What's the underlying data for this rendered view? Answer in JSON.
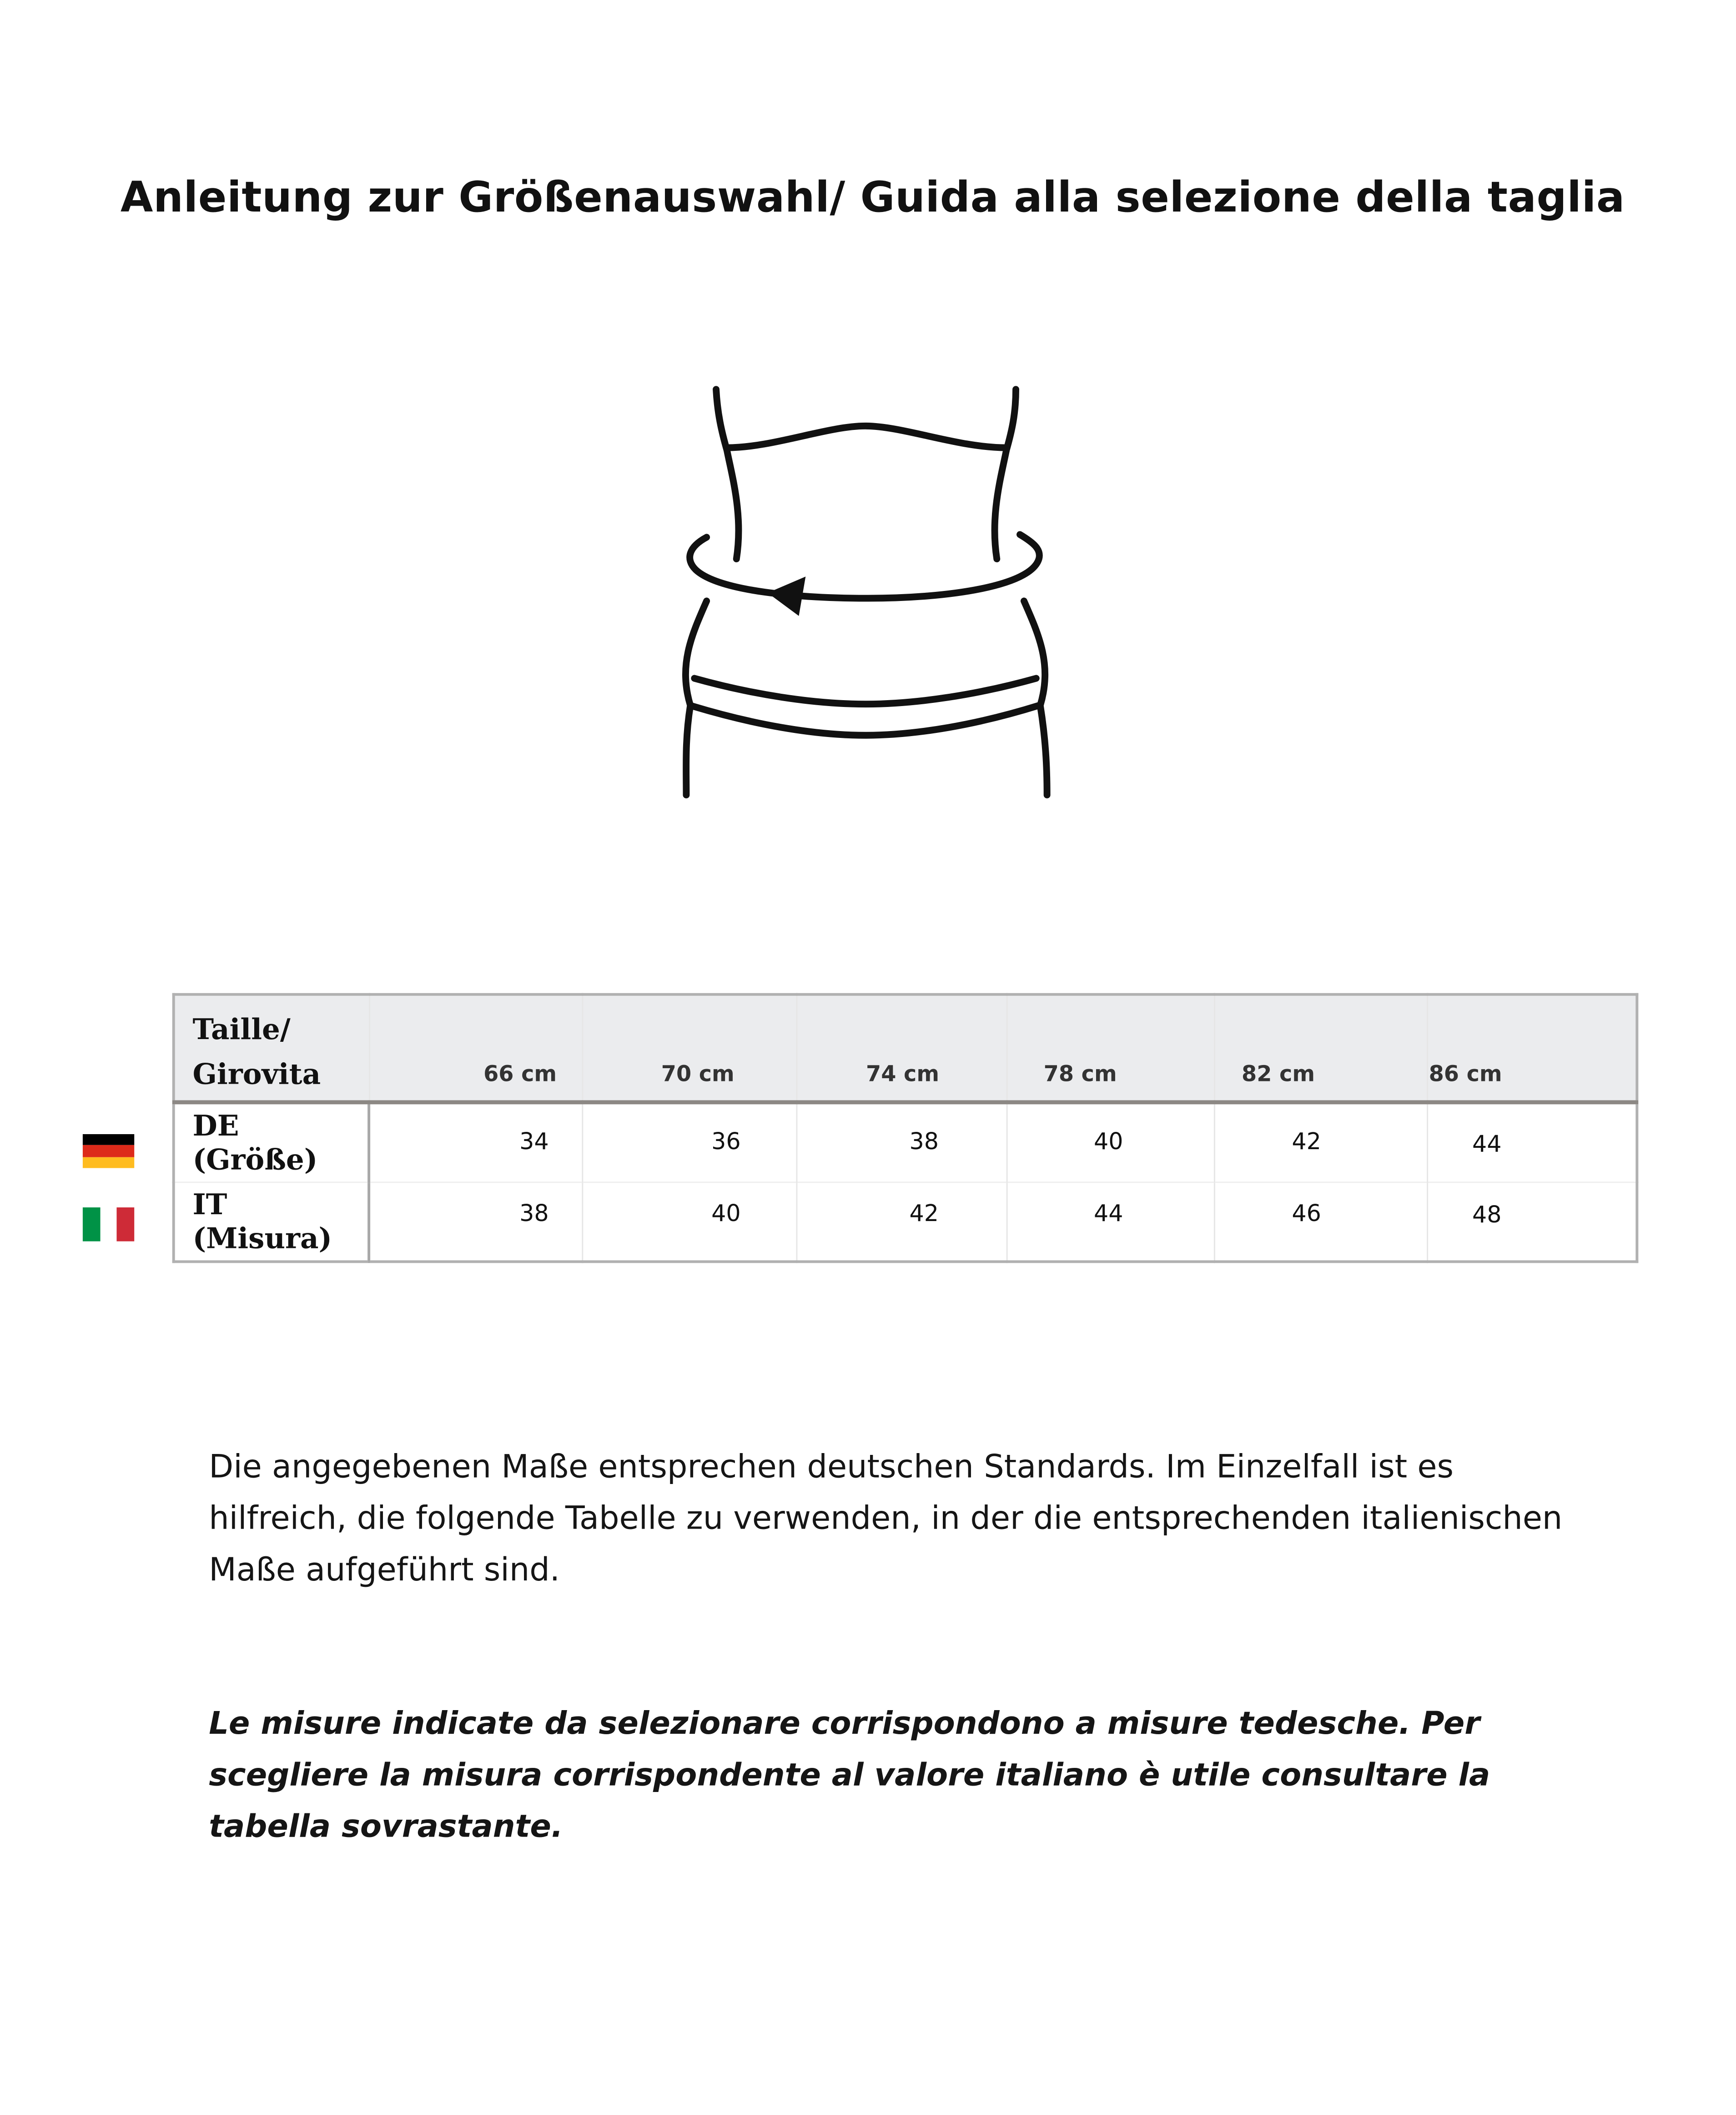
{
  "title": "Anleitung zur Größenauswahl/ Guida alla selezione della taglia",
  "figure": {
    "icon": "waist-measurement-icon"
  },
  "table": {
    "header_label_line1": "Taille/",
    "header_label_line2": "Girovita",
    "columns": [
      "66 cm",
      "70 cm",
      "74 cm",
      "78 cm",
      "82 cm",
      "86 cm"
    ],
    "rows": [
      {
        "label": "DE (Größe)",
        "flag": "germany-flag-icon",
        "flag_colors": [
          "#000000",
          "#dd2a1a",
          "#ffbc1f"
        ],
        "values": [
          "34",
          "36",
          "38",
          "40",
          "42",
          "44"
        ]
      },
      {
        "label": "IT (Misura)",
        "flag": "italy-flag-icon",
        "flag_colors": [
          "#009246",
          "#ffffff",
          "#ce2b37"
        ],
        "values": [
          "38",
          "40",
          "42",
          "44",
          "46",
          "48"
        ]
      }
    ],
    "header_bg": "#ebecee"
  },
  "text_de": "Die angegebenen Maße entsprechen deutschen Standards. Im Einzelfall ist es hilfreich, die folgende Tabelle zu verwenden, in der die entsprechenden italienischen Maße aufgeführt sind.",
  "text_it": "Le misure indicate da selezionare corrispondono a misure tedesche. Per scegliere la misura corrispondente al valore italiano è utile consultare la tabella sovrastante."
}
